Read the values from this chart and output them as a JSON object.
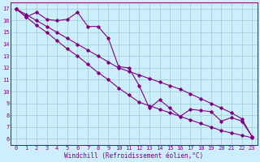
{
  "bg_color": "#cceeff",
  "grid_color": "#99cccc",
  "line_color": "#800080",
  "spine_color": "#800080",
  "xlabel": "Windchill (Refroidissement éolien,°C)",
  "xlim": [
    -0.5,
    23.5
  ],
  "ylim": [
    5.5,
    17.5
  ],
  "xticks": [
    0,
    1,
    2,
    3,
    4,
    5,
    6,
    7,
    8,
    9,
    10,
    11,
    12,
    13,
    14,
    15,
    16,
    17,
    18,
    19,
    20,
    21,
    22,
    23
  ],
  "yticks": [
    6,
    7,
    8,
    9,
    10,
    11,
    12,
    13,
    14,
    15,
    16,
    17
  ],
  "series1_x": [
    0,
    1,
    2,
    3,
    4,
    5,
    6,
    7,
    8,
    9,
    10,
    11,
    12,
    13,
    14,
    15,
    16,
    17,
    18,
    19,
    20,
    21,
    22,
    23
  ],
  "series1_y": [
    17.0,
    16.3,
    16.7,
    16.1,
    16.0,
    16.1,
    16.7,
    15.5,
    15.5,
    14.5,
    12.1,
    12.0,
    10.5,
    8.6,
    9.3,
    8.6,
    7.9,
    8.5,
    8.4,
    8.3,
    7.5,
    7.8,
    7.5,
    6.2
  ],
  "series2_x": [
    0,
    1,
    2,
    3,
    4,
    5,
    6,
    7,
    8,
    9,
    10,
    11,
    12,
    13,
    14,
    15,
    16,
    17,
    18,
    19,
    20,
    21,
    22,
    23
  ],
  "series2_y": [
    17.0,
    16.5,
    16.0,
    15.5,
    15.0,
    14.5,
    14.0,
    13.5,
    13.0,
    12.5,
    12.0,
    11.7,
    11.4,
    11.1,
    10.8,
    10.5,
    10.2,
    9.8,
    9.4,
    9.0,
    8.6,
    8.2,
    7.7,
    6.2
  ],
  "series3_x": [
    0,
    1,
    2,
    3,
    4,
    5,
    6,
    7,
    8,
    9,
    10,
    11,
    12,
    13,
    14,
    15,
    16,
    17,
    18,
    19,
    20,
    21,
    22,
    23
  ],
  "series3_y": [
    17.0,
    16.3,
    15.6,
    15.0,
    14.3,
    13.6,
    13.0,
    12.3,
    11.6,
    11.0,
    10.3,
    9.7,
    9.1,
    8.8,
    8.5,
    8.2,
    7.9,
    7.6,
    7.3,
    7.0,
    6.7,
    6.5,
    6.3,
    6.1
  ],
  "marker": "D",
  "markersize": 1.8,
  "linewidth": 0.8,
  "tick_fontsize": 5,
  "xlabel_fontsize": 5.5
}
